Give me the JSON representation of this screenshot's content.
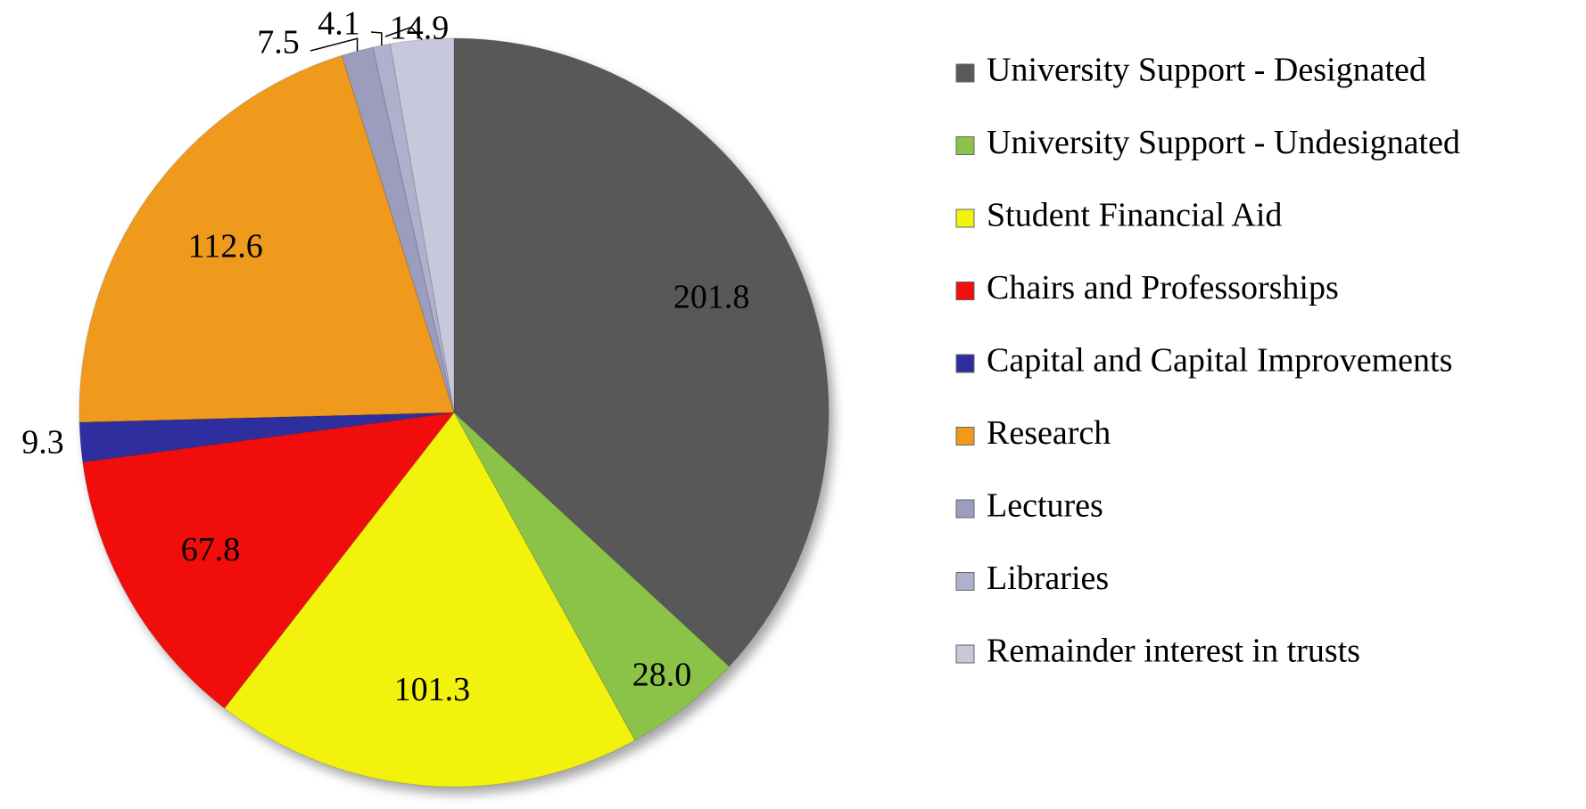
{
  "chart_data": {
    "type": "pie",
    "categories": [
      "University Support - Designated",
      "University Support - Undesignated",
      "Student Financial Aid",
      "Chairs and Professorships",
      "Capital and Capital Improvements",
      "Research",
      "Lectures",
      "Libraries",
      "Remainder interest in trusts"
    ],
    "values": [
      201.8,
      28.0,
      101.3,
      67.8,
      9.3,
      112.6,
      7.5,
      4.1,
      14.9
    ],
    "value_labels": [
      "201.8",
      "28.0",
      "101.3",
      "67.8",
      "9.3",
      "112.6",
      "7.5",
      "4.1",
      "14.9"
    ],
    "colors": [
      "#595959",
      "#8bc34a",
      "#f2f20a",
      "#f20f0f",
      "#2e2e9e",
      "#ef9a1a",
      "#9c9cbe",
      "#b0b0cc",
      "#c8c8dc"
    ],
    "legend": "right"
  }
}
